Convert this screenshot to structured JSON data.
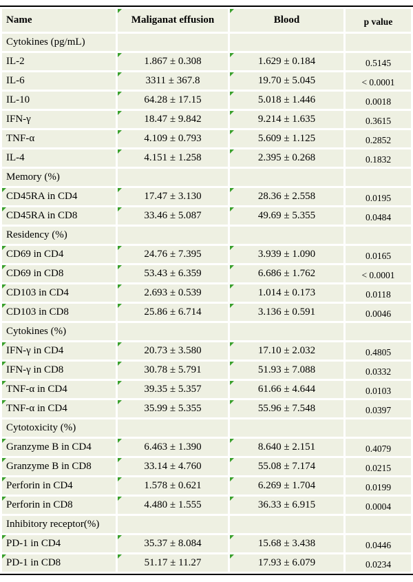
{
  "colors": {
    "cell_bg": "#eef0e2",
    "grid_line": "#ffffff",
    "flag_triangle": "#3aa02c",
    "rule_line": "#000000"
  },
  "table": {
    "columns": [
      {
        "label": "Name",
        "flag": false
      },
      {
        "label": "Maliganat effusion",
        "flag": true
      },
      {
        "label": "Blood",
        "flag": true
      },
      {
        "label": "p value",
        "flag": false
      }
    ],
    "rows": [
      {
        "type": "section",
        "name": "Cytokines (pg/mL)"
      },
      {
        "type": "data",
        "name": "IL-2",
        "effusion": "1.867 ± 0.308",
        "blood": "1.629 ± 0.184",
        "p": "0.5145",
        "name_flag": false
      },
      {
        "type": "data",
        "name": "IL-6",
        "effusion": "3311 ± 367.8",
        "blood": "19.70 ± 5.045",
        "p": "< 0.0001",
        "name_flag": false
      },
      {
        "type": "data",
        "name": "IL-10",
        "effusion": "64.28 ± 17.15",
        "blood": "5.018 ± 1.446",
        "p": "0.0018",
        "name_flag": false
      },
      {
        "type": "data",
        "name": "IFN-γ",
        "effusion": "18.47 ± 9.842",
        "blood": "9.214 ± 1.635",
        "p": "0.3615",
        "name_flag": false
      },
      {
        "type": "data",
        "name": "TNF-α",
        "effusion": "4.109 ± 0.793",
        "blood": "5.609 ± 1.125",
        "p": "0.2852",
        "name_flag": false
      },
      {
        "type": "data",
        "name": "IL-4",
        "effusion": "4.151 ± 1.258",
        "blood": "2.395 ± 0.268",
        "p": "0.1832",
        "name_flag": false
      },
      {
        "type": "section",
        "name": "Memory (%)"
      },
      {
        "type": "data",
        "name": "CD45RA in CD4",
        "effusion": "17.47 ± 3.130",
        "blood": "28.36 ± 2.558",
        "p": "0.0195",
        "name_flag": true
      },
      {
        "type": "data",
        "name": "CD45RA in CD8",
        "effusion": "33.46 ± 5.087",
        "blood": "49.69 ± 5.355",
        "p": "0.0484",
        "name_flag": true
      },
      {
        "type": "section",
        "name": "Residency (%)"
      },
      {
        "type": "data",
        "name": "CD69 in CD4",
        "effusion": "24.76 ± 7.395",
        "blood": "3.939 ± 1.090",
        "p": "0.0165",
        "name_flag": true
      },
      {
        "type": "data",
        "name": "CD69 in CD8",
        "effusion": "53.43 ± 6.359",
        "blood": "6.686 ± 1.762",
        "p": "< 0.0001",
        "name_flag": true
      },
      {
        "type": "data",
        "name": "CD103 in CD4",
        "effusion": "2.693 ± 0.539",
        "blood": "1.014 ± 0.173",
        "p": "0.0118",
        "name_flag": true
      },
      {
        "type": "data",
        "name": "CD103 in CD8",
        "effusion": "25.86 ± 6.714",
        "blood": "3.136 ± 0.591",
        "p": "0.0046",
        "name_flag": true
      },
      {
        "type": "section",
        "name": "Cytokines (%)"
      },
      {
        "type": "data",
        "name": "IFN-γ in CD4",
        "effusion": "20.73 ± 3.580",
        "blood": "17.10 ± 2.032",
        "p": "0.4805",
        "name_flag": true
      },
      {
        "type": "data",
        "name": "IFN-γ in CD8",
        "effusion": "30.78 ± 5.791",
        "blood": "51.93 ± 7.088",
        "p": "0.0332",
        "name_flag": true
      },
      {
        "type": "data",
        "name": "TNF-α in CD4",
        "effusion": "39.35 ± 5.357",
        "blood": "61.66 ± 4.644",
        "p": "0.0103",
        "name_flag": true
      },
      {
        "type": "data",
        "name": "TNF-α in CD4",
        "effusion": "35.99 ± 5.355",
        "blood": "55.96 ± 7.548",
        "p": "0.0397",
        "name_flag": true
      },
      {
        "type": "section",
        "name": "Cytotoxicity (%)"
      },
      {
        "type": "data",
        "name": "Granzyme B in CD4",
        "effusion": "6.463 ± 1.390",
        "blood": "8.640 ± 2.151",
        "p": "0.4079",
        "name_flag": true
      },
      {
        "type": "data",
        "name": "Granzyme B in CD8",
        "effusion": "33.14 ± 4.760",
        "blood": "55.08 ± 7.174",
        "p": "0.0215",
        "name_flag": true
      },
      {
        "type": "data",
        "name": "Perforin in CD4",
        "effusion": "1.578 ± 0.621",
        "blood": "6.269 ± 1.704",
        "p": "0.0199",
        "name_flag": true
      },
      {
        "type": "data",
        "name": "Perforin in CD8",
        "effusion": "4.480 ± 1.555",
        "blood": "36.33 ± 6.915",
        "p": "0.0004",
        "name_flag": true
      },
      {
        "type": "section",
        "name": "Inhibitory receptor(%)"
      },
      {
        "type": "data",
        "name": "PD-1 in CD4",
        "effusion": "35.37 ± 8.084",
        "blood": "15.68 ± 3.438",
        "p": "0.0446",
        "name_flag": true
      },
      {
        "type": "data",
        "name": "PD-1 in CD8",
        "effusion": "51.17 ± 11.27",
        "blood": "17.93 ± 6.079",
        "p": "0.0234",
        "name_flag": true
      }
    ]
  }
}
